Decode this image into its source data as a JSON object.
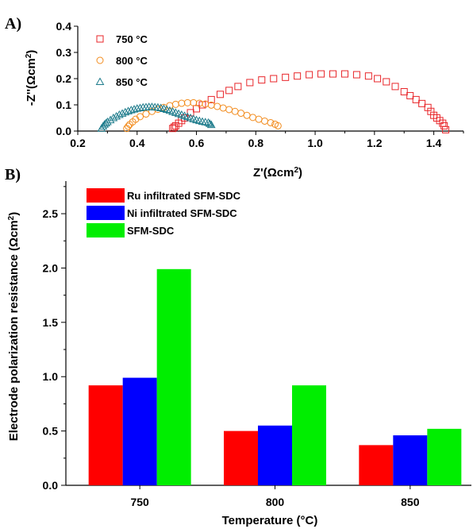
{
  "chart_data": [
    {
      "panel": "A)",
      "type": "scatter",
      "xlabel": "Z'(Ωcm²)",
      "ylabel": "-Z''(Ωcm²)",
      "xlim": [
        0.2,
        1.5
      ],
      "ylim": [
        0,
        0.4
      ],
      "xticks": [
        "0.2",
        "0.4",
        "0.6",
        "0.8",
        "1.0",
        "1.2",
        "1.4"
      ],
      "yticks": [
        "0.0",
        "0.1",
        "0.2",
        "0.3",
        "0.4"
      ],
      "legend": "top-left",
      "series": [
        {
          "name": "750 °C",
          "color": "#e8262a",
          "marker": "square",
          "x": [
            0.52,
            0.525,
            0.53,
            0.54,
            0.55,
            0.56,
            0.58,
            0.6,
            0.62,
            0.65,
            0.68,
            0.71,
            0.74,
            0.78,
            0.82,
            0.86,
            0.9,
            0.94,
            0.98,
            1.02,
            1.06,
            1.1,
            1.14,
            1.18,
            1.21,
            1.24,
            1.27,
            1.3,
            1.32,
            1.34,
            1.36,
            1.38,
            1.39,
            1.4,
            1.41,
            1.42,
            1.43,
            1.435,
            1.44
          ],
          "y": [
            0.01,
            0.015,
            0.02,
            0.03,
            0.04,
            0.05,
            0.07,
            0.085,
            0.1,
            0.12,
            0.14,
            0.155,
            0.17,
            0.185,
            0.195,
            0.2,
            0.205,
            0.21,
            0.215,
            0.218,
            0.218,
            0.218,
            0.215,
            0.21,
            0.2,
            0.188,
            0.17,
            0.15,
            0.135,
            0.12,
            0.105,
            0.09,
            0.075,
            0.06,
            0.05,
            0.04,
            0.03,
            0.02,
            0.005
          ]
        },
        {
          "name": "800 °C",
          "color": "#f28c1e",
          "marker": "circle",
          "x": [
            0.365,
            0.37,
            0.375,
            0.385,
            0.395,
            0.41,
            0.43,
            0.45,
            0.47,
            0.49,
            0.51,
            0.53,
            0.55,
            0.57,
            0.59,
            0.61,
            0.63,
            0.65,
            0.67,
            0.69,
            0.71,
            0.73,
            0.75,
            0.77,
            0.79,
            0.81,
            0.83,
            0.85,
            0.865,
            0.875
          ],
          "y": [
            0.01,
            0.018,
            0.025,
            0.035,
            0.045,
            0.055,
            0.065,
            0.075,
            0.083,
            0.09,
            0.097,
            0.102,
            0.106,
            0.108,
            0.108,
            0.106,
            0.103,
            0.099,
            0.094,
            0.088,
            0.082,
            0.075,
            0.068,
            0.06,
            0.052,
            0.045,
            0.038,
            0.032,
            0.026,
            0.02
          ]
        },
        {
          "name": "850 °C",
          "color": "#1f7c8c",
          "marker": "triangle",
          "x": [
            0.28,
            0.285,
            0.29,
            0.295,
            0.3,
            0.31,
            0.32,
            0.33,
            0.34,
            0.35,
            0.36,
            0.37,
            0.38,
            0.39,
            0.4,
            0.41,
            0.42,
            0.43,
            0.44,
            0.45,
            0.46,
            0.47,
            0.48,
            0.49,
            0.5,
            0.51,
            0.52,
            0.53,
            0.54,
            0.55,
            0.56,
            0.57,
            0.58,
            0.59,
            0.6,
            0.61,
            0.62,
            0.63,
            0.64,
            0.645,
            0.65
          ],
          "y": [
            0.01,
            0.018,
            0.025,
            0.03,
            0.035,
            0.042,
            0.05,
            0.056,
            0.062,
            0.067,
            0.072,
            0.076,
            0.08,
            0.083,
            0.086,
            0.088,
            0.09,
            0.091,
            0.092,
            0.092,
            0.091,
            0.09,
            0.088,
            0.085,
            0.082,
            0.078,
            0.074,
            0.07,
            0.066,
            0.062,
            0.058,
            0.054,
            0.05,
            0.046,
            0.042,
            0.039,
            0.036,
            0.034,
            0.032,
            0.028,
            0.024
          ]
        }
      ]
    },
    {
      "panel": "B)",
      "type": "bar",
      "xlabel": "Temperature (°C)",
      "ylabel": "Electrode polarization resistance (Ωcm²)",
      "categories": [
        "750",
        "800",
        "850"
      ],
      "ylim": [
        0,
        2.8
      ],
      "yticks": [
        "0.0",
        "0.5",
        "1.0",
        "1.5",
        "2.0",
        "2.5"
      ],
      "legend": "top-left",
      "series": [
        {
          "name": "Ru infiltrated SFM-SDC",
          "color": "#ff0000",
          "values": [
            0.92,
            0.5,
            0.37
          ]
        },
        {
          "name": "Ni infiltrated SFM-SDC",
          "color": "#0000ff",
          "values": [
            0.99,
            0.55,
            0.46
          ]
        },
        {
          "name": "SFM-SDC",
          "color": "#00ee00",
          "values": [
            1.99,
            0.92,
            0.52
          ]
        }
      ]
    }
  ]
}
